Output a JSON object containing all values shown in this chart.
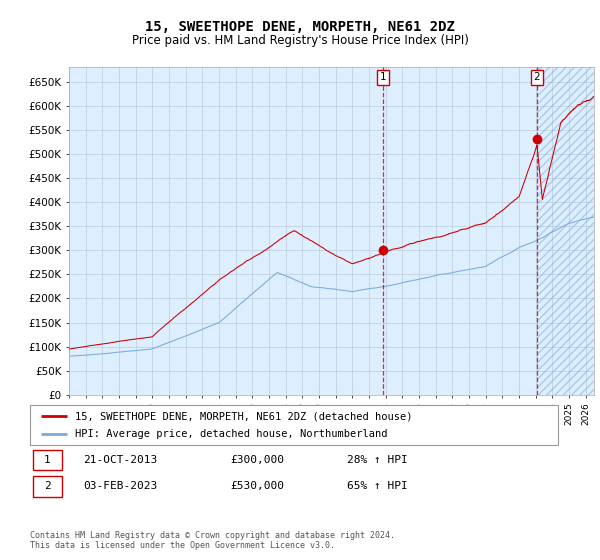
{
  "title": "15, SWEETHOPE DENE, MORPETH, NE61 2DZ",
  "subtitle": "Price paid vs. HM Land Registry's House Price Index (HPI)",
  "legend_line1": "15, SWEETHOPE DENE, MORPETH, NE61 2DZ (detached house)",
  "legend_line2": "HPI: Average price, detached house, Northumberland",
  "annotation1_date": "21-OCT-2013",
  "annotation1_price": "£300,000",
  "annotation1_hpi": "28% ↑ HPI",
  "annotation2_date": "03-FEB-2023",
  "annotation2_price": "£530,000",
  "annotation2_hpi": "65% ↑ HPI",
  "footer": "Contains HM Land Registry data © Crown copyright and database right 2024.\nThis data is licensed under the Open Government Licence v3.0.",
  "red_color": "#cc0000",
  "blue_color": "#7aaadd",
  "bg_color": "#ddeeff",
  "grid_color": "#bbccdd",
  "ylim": [
    0,
    680000
  ],
  "yticks": [
    0,
    50000,
    100000,
    150000,
    200000,
    250000,
    300000,
    350000,
    400000,
    450000,
    500000,
    550000,
    600000,
    650000
  ],
  "sale1_year": 2013.83,
  "sale2_year": 2023.08,
  "sale1_val": 300000,
  "sale2_val": 530000,
  "xmin": 1995,
  "xmax": 2026.5
}
